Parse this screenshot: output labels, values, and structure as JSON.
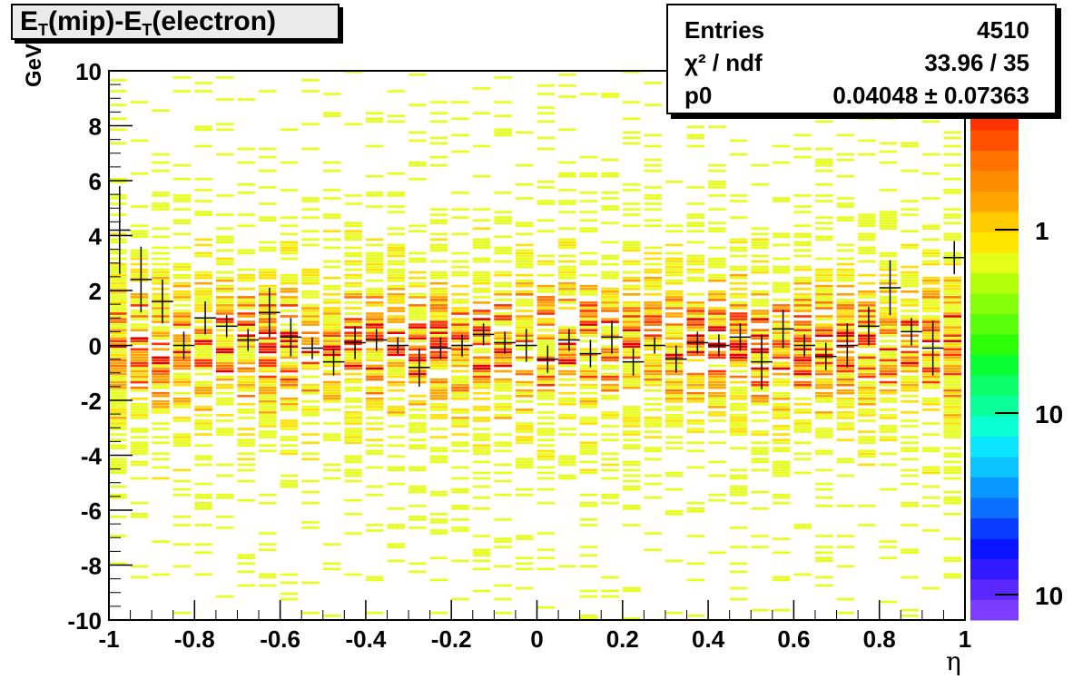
{
  "title": {
    "main": "E",
    "sub1": "T",
    "mid": "(mip)-E",
    "sub2": "T",
    "tail": "(electron)"
  },
  "stats": {
    "entries_label": "Entries",
    "entries_value": "4510",
    "chi2_label": "χ² / ndf",
    "chi2_value": "33.96 / 35",
    "p0_label": "p0",
    "p0_value": "0.04048 ± 0.07363"
  },
  "axes": {
    "ylabel": "GeV",
    "xlabel": "η"
  },
  "colors": {
    "heat_low": "#e6ff19",
    "heat_mid1": "#ffe000",
    "heat_mid2": "#ffa500",
    "heat_high1": "#ff7300",
    "heat_high2": "#ff3200",
    "heat_max": "#e60000",
    "profile": "#000000"
  },
  "chart_data": {
    "type": "heatmap",
    "xlim": [
      -1,
      1
    ],
    "ylim": [
      -10,
      10
    ],
    "x_ticks": [
      "-1",
      "-0.8",
      "-0.6",
      "-0.4",
      "-0.2",
      "0",
      "0.2",
      "0.4",
      "0.6",
      "0.8",
      "1"
    ],
    "y_ticks": [
      "-10",
      "-8",
      "-6",
      "-4",
      "-2",
      "0",
      "2",
      "4",
      "6",
      "8",
      "10"
    ],
    "grid": false,
    "colorbar_labels": [
      "1",
      "10",
      "10"
    ],
    "profile": {
      "x": [
        -0.975,
        -0.925,
        -0.875,
        -0.825,
        -0.775,
        -0.725,
        -0.675,
        -0.625,
        -0.575,
        -0.525,
        -0.475,
        -0.425,
        -0.375,
        -0.325,
        -0.275,
        -0.225,
        -0.175,
        -0.125,
        -0.075,
        -0.025,
        0.025,
        0.075,
        0.125,
        0.175,
        0.225,
        0.275,
        0.325,
        0.375,
        0.425,
        0.475,
        0.525,
        0.575,
        0.625,
        0.675,
        0.725,
        0.775,
        0.825,
        0.875,
        0.925,
        0.975
      ],
      "y": [
        4.2,
        2.4,
        1.6,
        0.0,
        1.0,
        0.7,
        0.2,
        1.2,
        0.3,
        -0.1,
        -0.6,
        0.1,
        0.2,
        0.0,
        -0.8,
        -0.1,
        0.0,
        0.4,
        0.1,
        0.0,
        -0.5,
        0.2,
        -0.3,
        0.3,
        -0.6,
        0.0,
        -0.5,
        0.1,
        0.0,
        0.3,
        -0.6,
        0.6,
        0.0,
        -0.4,
        0.0,
        0.7,
        2.1,
        0.5,
        -0.1,
        3.2
      ],
      "err": [
        1.6,
        1.2,
        0.8,
        0.5,
        0.6,
        0.4,
        0.4,
        0.9,
        0.7,
        0.4,
        0.5,
        0.6,
        0.4,
        0.3,
        0.7,
        0.4,
        0.4,
        0.4,
        0.4,
        0.6,
        0.5,
        0.4,
        0.5,
        0.6,
        0.5,
        0.3,
        0.5,
        0.4,
        0.4,
        0.5,
        1.0,
        0.7,
        0.4,
        0.5,
        0.8,
        0.7,
        1.0,
        0.5,
        1.0,
        0.6
      ]
    }
  }
}
